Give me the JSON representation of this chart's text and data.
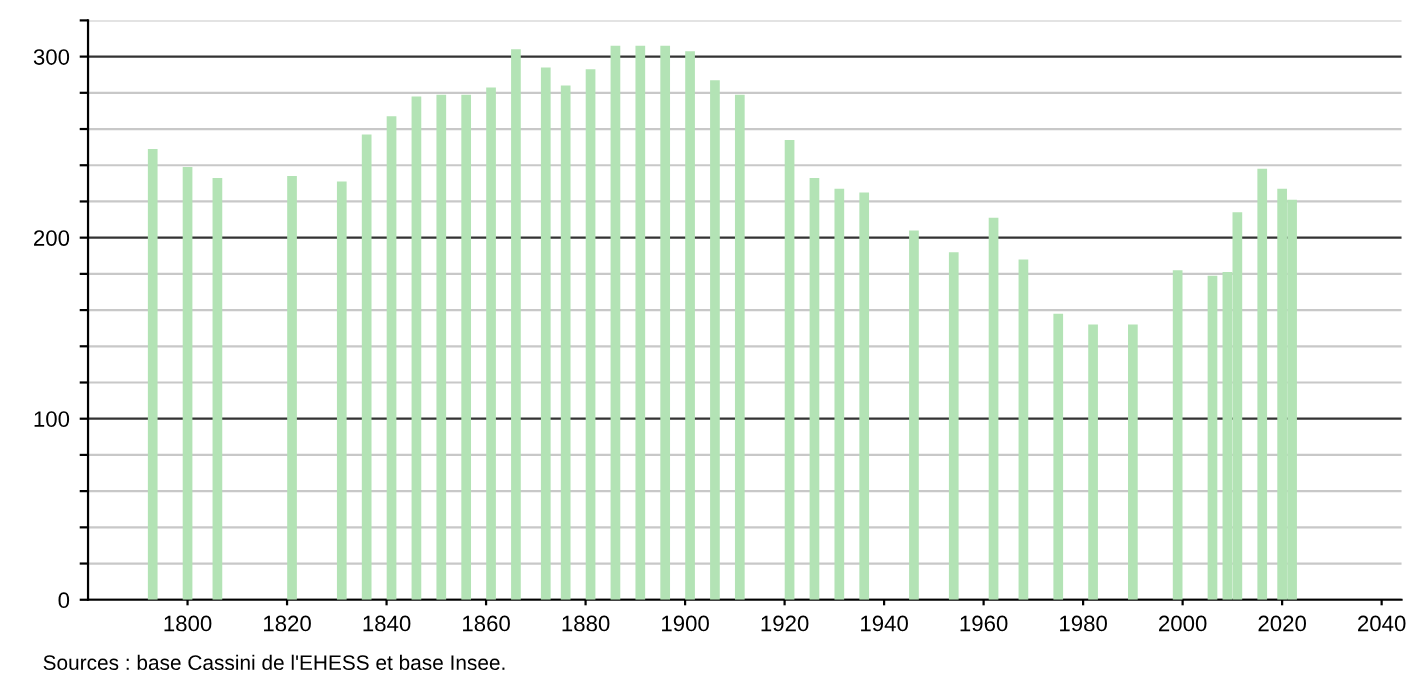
{
  "chart_data": {
    "type": "bar",
    "x": [
      1793,
      1800,
      1806,
      1821,
      1831,
      1836,
      1841,
      1846,
      1851,
      1856,
      1861,
      1866,
      1872,
      1876,
      1881,
      1886,
      1891,
      1896,
      1901,
      1906,
      1911,
      1921,
      1926,
      1931,
      1936,
      1946,
      1954,
      1962,
      1968,
      1975,
      1982,
      1990,
      1999,
      2006,
      2009,
      2011,
      2016,
      2020,
      2022
    ],
    "values": [
      249,
      239,
      233,
      234,
      231,
      257,
      267,
      278,
      279,
      279,
      283,
      304,
      294,
      284,
      293,
      306,
      306,
      306,
      303,
      287,
      279,
      254,
      233,
      227,
      225,
      204,
      192,
      211,
      188,
      158,
      152,
      152,
      182,
      179,
      181,
      214,
      238,
      227,
      221
    ],
    "color": "#b3e3b5",
    "xlim": [
      1780,
      2044
    ],
    "xticks": [
      1800,
      1820,
      1840,
      1860,
      1880,
      1900,
      1920,
      1940,
      1960,
      1980,
      2000,
      2020,
      2040
    ],
    "ylim": [
      0,
      320
    ],
    "yticks": [
      0,
      {
        "value": 20,
        "label": null
      },
      {
        "value": 40,
        "label": null
      },
      {
        "value": 60,
        "label": null
      },
      {
        "value": 80,
        "label": null
      },
      100,
      {
        "value": 120,
        "label": null
      },
      {
        "value": 140,
        "label": null
      },
      {
        "value": 160,
        "label": null
      },
      {
        "value": 180,
        "label": null
      },
      200,
      {
        "value": 220,
        "label": null
      },
      {
        "value": 240,
        "label": null
      },
      {
        "value": 260,
        "label": null
      },
      {
        "value": 280,
        "label": null
      },
      300,
      {
        "value": 320,
        "label": null
      }
    ],
    "grid": "y",
    "annotations": [
      "Sources : base Cassini de l'EHESS et base Insee."
    ]
  }
}
